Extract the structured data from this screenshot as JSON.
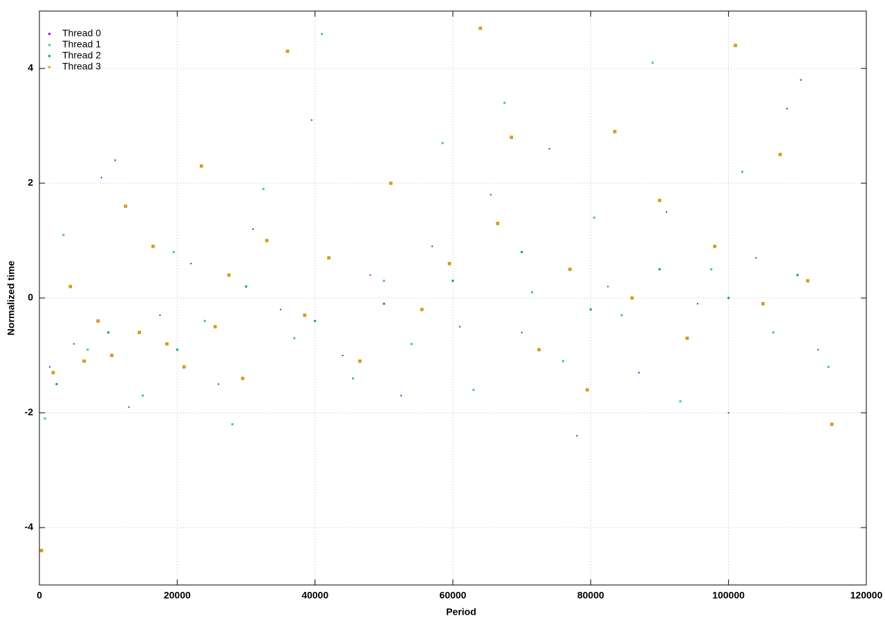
{
  "chart_data": {
    "type": "scatter",
    "xlabel": "Period",
    "ylabel": "Normalized time",
    "xlim": [
      0,
      120000
    ],
    "xticks": [
      0,
      20000,
      40000,
      60000,
      80000,
      100000,
      120000
    ],
    "ylim": [
      -5,
      5
    ],
    "yticks": [
      -4,
      -2,
      0,
      2,
      4
    ],
    "grid": true,
    "legend": "top-left",
    "series": [
      {
        "name": "Thread 0",
        "color": "#9400d3",
        "x": [
          1500,
          5000,
          9000,
          13000,
          17500,
          22000,
          26000,
          31000,
          35000,
          39500,
          44000,
          48000,
          52500,
          57000,
          61000,
          65500,
          70000,
          74000,
          78000,
          82500,
          87000,
          91000,
          95500,
          100000,
          104000,
          108500,
          113000
        ],
        "values": [
          -1.2,
          -0.8,
          2.1,
          -1.9,
          -0.3,
          0.6,
          -1.5,
          1.2,
          -0.2,
          3.1,
          -1.0,
          0.4,
          -1.7,
          0.9,
          -0.5,
          1.8,
          -0.6,
          2.6,
          -2.4,
          0.2,
          -1.3,
          1.5,
          -0.1,
          -2.0,
          0.7,
          3.3,
          -0.9
        ]
      },
      {
        "name": "Thread 1",
        "color": "#4ab5c8",
        "x": [
          800,
          3500,
          7000,
          11000,
          15000,
          19500,
          24000,
          28000,
          32500,
          37000,
          41000,
          45500,
          50000,
          54000,
          58500,
          63000,
          67500,
          71500,
          76000,
          80500,
          84500,
          89000,
          93000,
          97500,
          102000,
          106500,
          110500,
          114500
        ],
        "values": [
          -2.1,
          1.1,
          -0.9,
          2.4,
          -1.7,
          0.8,
          -0.4,
          -2.2,
          1.9,
          -0.7,
          4.6,
          -1.4,
          0.3,
          -0.8,
          2.7,
          -1.6,
          3.4,
          0.1,
          -1.1,
          1.4,
          -0.3,
          4.1,
          -1.8,
          0.5,
          2.2,
          -0.6,
          3.8,
          -1.2
        ]
      },
      {
        "name": "Thread 2",
        "color": "#009e73",
        "x": [
          2500,
          10000,
          20000,
          30000,
          40000,
          50000,
          60000,
          70000,
          80000,
          90000,
          100000,
          110000
        ],
        "values": [
          -1.5,
          -0.6,
          -0.9,
          0.2,
          -0.4,
          -0.1,
          0.3,
          0.8,
          -0.2,
          0.5,
          0.0,
          0.4
        ]
      },
      {
        "name": "Thread 3",
        "color": "#e69f00",
        "x": [
          300,
          2000,
          4500,
          6500,
          8500,
          10500,
          12500,
          14500,
          16500,
          18500,
          21000,
          23500,
          25500,
          27500,
          29500,
          33000,
          36000,
          38500,
          42000,
          46500,
          51000,
          55500,
          59500,
          64000,
          66500,
          68500,
          72500,
          77000,
          79500,
          83500,
          86000,
          90000,
          94000,
          98000,
          101000,
          105000,
          107500,
          111500,
          115000
        ],
        "values": [
          -4.4,
          -1.3,
          0.2,
          -1.1,
          -0.4,
          -1.0,
          1.6,
          -0.6,
          0.9,
          -0.8,
          -1.2,
          2.3,
          -0.5,
          0.4,
          -1.4,
          1.0,
          4.3,
          -0.3,
          0.7,
          -1.1,
          2.0,
          -0.2,
          0.6,
          4.7,
          1.3,
          2.8,
          -0.9,
          0.5,
          -1.6,
          2.9,
          0.0,
          1.7,
          -0.7,
          0.9,
          4.4,
          -0.1,
          2.5,
          0.3,
          -2.2
        ]
      }
    ]
  }
}
